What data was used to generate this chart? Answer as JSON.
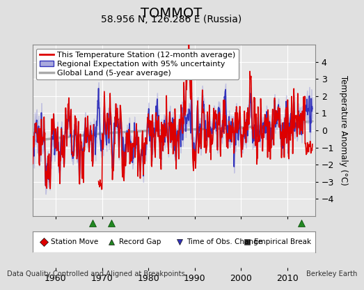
{
  "title": "TOMMOT",
  "subtitle": "58.956 N, 126.286 E (Russia)",
  "ylabel": "Temperature Anomaly (°C)",
  "xlabel_years": [
    1960,
    1970,
    1980,
    1990,
    2000,
    2010
  ],
  "ylim": [
    -5,
    5
  ],
  "xlim": [
    1955,
    2016
  ],
  "yticks": [
    -4,
    -3,
    -2,
    -1,
    0,
    1,
    2,
    3,
    4
  ],
  "footer_left": "Data Quality Controlled and Aligned at Breakpoints",
  "footer_right": "Berkeley Earth",
  "legend_items": [
    {
      "label": "This Temperature Station (12-month average)",
      "color": "#dd0000",
      "lw": 1.8
    },
    {
      "label": "Regional Expectation with 95% uncertainty",
      "color": "#3333bb",
      "lw": 1.5
    },
    {
      "label": "Global Land (5-year average)",
      "color": "#aaaaaa",
      "lw": 2.5
    }
  ],
  "marker_legend": [
    {
      "marker": "D",
      "color": "#dd0000",
      "label": "Station Move"
    },
    {
      "marker": "^",
      "color": "#228822",
      "label": "Record Gap"
    },
    {
      "marker": "v",
      "color": "#3333bb",
      "label": "Time of Obs. Change"
    },
    {
      "marker": "s",
      "color": "#333333",
      "label": "Empirical Break"
    }
  ],
  "record_gaps": [
    1968.0,
    1972.0,
    2013.0
  ],
  "bg_color": "#e0e0e0",
  "plot_bg_color": "#e8e8e8",
  "grid_color": "#ffffff",
  "title_fontsize": 14,
  "subtitle_fontsize": 10,
  "tick_fontsize": 9,
  "legend_fontsize": 8.5
}
